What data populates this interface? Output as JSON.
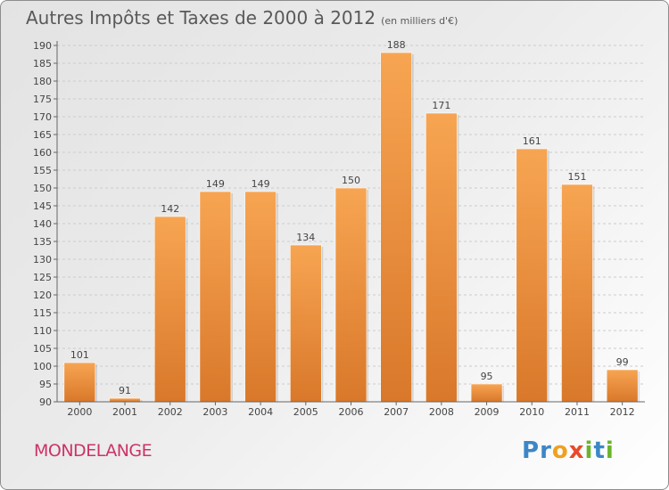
{
  "header": {
    "title": "Autres Impôts et Taxes de 2000 à 2012",
    "subtitle": "(en milliers d'€)"
  },
  "footer": {
    "commune": "MONDELANGE",
    "logo_letters": [
      "P",
      "r",
      "o",
      "x",
      "i",
      "t",
      "i"
    ],
    "logo_colors": [
      "#3c87c7",
      "#3c87c7",
      "#f0a020",
      "#e84a2b",
      "#6ab42d",
      "#3c87c7",
      "#6ab42d"
    ]
  },
  "colors": {
    "bar_light": "#f7a552",
    "bar_dark": "#d9782a",
    "grid": "#cccccc",
    "axis": "#666666",
    "commune": "#cc3366"
  },
  "chart_data": {
    "type": "bar",
    "title": "Autres Impôts et Taxes de 2000 à 2012",
    "subtitle": "(en milliers d'€)",
    "categories": [
      "2000",
      "2001",
      "2002",
      "2003",
      "2004",
      "2005",
      "2006",
      "2007",
      "2008",
      "2009",
      "2010",
      "2011",
      "2012"
    ],
    "values": [
      101,
      91,
      142,
      149,
      149,
      134,
      150,
      188,
      171,
      95,
      161,
      151,
      99
    ],
    "data_labels": [
      "101",
      "91",
      "142",
      "149",
      "149",
      "134",
      "150",
      "188",
      "171",
      "95",
      "161",
      "151",
      "99"
    ],
    "ylim": [
      90,
      190
    ],
    "yticks": [
      90,
      95,
      100,
      105,
      110,
      115,
      120,
      125,
      130,
      135,
      140,
      145,
      150,
      155,
      160,
      165,
      170,
      175,
      180,
      185,
      190
    ],
    "grid": "horizontal dashed",
    "xlabel": "",
    "ylabel": ""
  }
}
